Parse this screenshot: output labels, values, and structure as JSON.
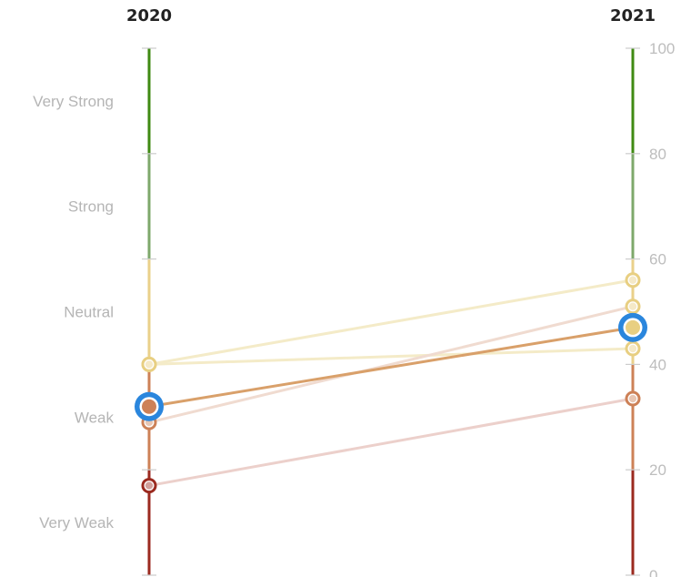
{
  "chart_data": {
    "type": "slope",
    "title": "",
    "x": [
      "2020",
      "2021"
    ],
    "yaxis": {
      "ylim": [
        0,
        100
      ],
      "ticks": [
        0,
        20,
        40,
        60,
        80,
        100
      ]
    },
    "bands": [
      {
        "label": "Very Weak",
        "range": [
          0,
          20
        ],
        "color": "#9b2a1f"
      },
      {
        "label": "Weak",
        "range": [
          20,
          40
        ],
        "color": "#cd8157"
      },
      {
        "label": "Neutral",
        "range": [
          40,
          60
        ],
        "color": "#ead08a"
      },
      {
        "label": "Strong",
        "range": [
          60,
          80
        ],
        "color": "#7ea86b"
      },
      {
        "label": "Very Strong",
        "range": [
          80,
          100
        ],
        "color": "#3f8a12"
      }
    ],
    "series": [
      {
        "values": [
          40,
          56
        ],
        "color": "#f4ebc8",
        "point_color": "#e8cf82",
        "highlighted": false
      },
      {
        "values": [
          40,
          43
        ],
        "color": "#f4ebc8",
        "point_color": "#e8cf82",
        "highlighted": false
      },
      {
        "values": [
          29,
          51
        ],
        "color": "#f0dbd0",
        "point_color": "#e8cf82",
        "start_point_color": "#cd8157",
        "highlighted": false
      },
      {
        "values": [
          17,
          33.5
        ],
        "color": "#ecd0cb",
        "point_color": "#cd8157",
        "start_point_color": "#9b2a1f",
        "highlighted": false
      },
      {
        "values": [
          32,
          47
        ],
        "color": "#d9a06a",
        "point_color": "#e8cf82",
        "start_point_color": "#cd8157",
        "highlighted": true
      }
    ],
    "highlight_color": "#2a86dd",
    "band_label_color": "#b5b5b5",
    "tick_label_color": "#bdbdbd"
  }
}
